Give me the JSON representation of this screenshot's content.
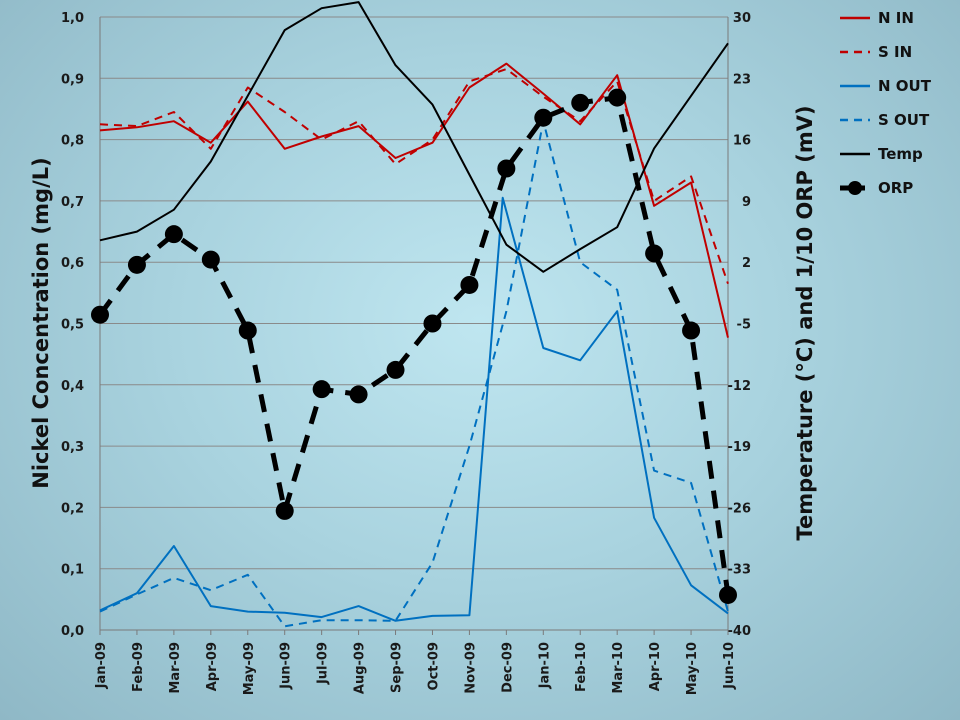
{
  "chart_data": {
    "type": "line",
    "categories": [
      "Jan-09",
      "Feb-09",
      "Mar-09",
      "Apr-09",
      "May-09",
      "Jun-09",
      "Jul-09",
      "Aug-09",
      "Sep-09",
      "Oct-09",
      "Nov-09",
      "Dec-09",
      "Jan-10",
      "Feb-10",
      "Mar-10",
      "Apr-10",
      "May-10",
      "Jun-10"
    ],
    "ylabel": "Nickel Concentration (mg/L)",
    "y2label": "Temperature (°C) and 1/10 ORP (mV)",
    "ylim": [
      0,
      1.0
    ],
    "y2lim": [
      -40,
      30
    ],
    "yticks": [
      "0,0",
      "0,1",
      "0,2",
      "0,3",
      "0,4",
      "0,5",
      "0,6",
      "0,7",
      "0,8",
      "0,9",
      "1,0"
    ],
    "y2ticks": [
      "-40",
      "-33",
      "-26",
      "-19",
      "-12",
      "-5",
      "2",
      "9",
      "16",
      "23",
      "30"
    ],
    "grid": true,
    "legend_position": "top-right",
    "series": [
      {
        "name": "N IN",
        "axis": "left",
        "color": "#c00000",
        "dash": "solid",
        "x": [
          0,
          1,
          2,
          3,
          4,
          5,
          6,
          7,
          8,
          9,
          10,
          11,
          12,
          13,
          14,
          15,
          16,
          17
        ],
        "y": [
          0.815,
          0.82,
          0.83,
          0.795,
          0.862,
          0.785,
          0.805,
          0.822,
          0.77,
          0.795,
          0.885,
          0.924,
          0.875,
          0.825,
          0.905,
          0.692,
          0.73,
          0.477
        ]
      },
      {
        "name": "S IN",
        "axis": "left",
        "color": "#c00000",
        "dash": "dashed",
        "x": [
          0,
          1,
          2,
          3,
          4,
          5,
          6,
          7,
          8,
          9,
          10,
          11,
          12,
          13,
          14,
          15,
          16,
          17
        ],
        "y": [
          0.825,
          0.822,
          0.845,
          0.785,
          0.885,
          0.845,
          0.8,
          0.83,
          0.76,
          0.8,
          0.895,
          0.915,
          0.87,
          0.83,
          0.895,
          0.7,
          0.74,
          0.565
        ]
      },
      {
        "name": "N OUT",
        "axis": "left",
        "color": "#0070c0",
        "dash": "solid",
        "x": [
          0,
          1,
          2,
          3,
          4,
          5,
          6,
          7,
          8,
          9,
          10,
          10.9,
          12,
          13,
          14,
          15,
          16,
          17
        ],
        "y": [
          0.032,
          0.06,
          0.137,
          0.039,
          0.03,
          0.028,
          0.021,
          0.039,
          0.015,
          0.023,
          0.024,
          0.705,
          0.46,
          0.44,
          0.52,
          0.183,
          0.073,
          0.027
        ]
      },
      {
        "name": "S OUT",
        "axis": "left",
        "color": "#0070c0",
        "dash": "dashed",
        "x": [
          0,
          1,
          2,
          3,
          4,
          5,
          6,
          7,
          8,
          9,
          10,
          11,
          12,
          13,
          14,
          15,
          16,
          17
        ],
        "y": [
          0.03,
          0.058,
          0.085,
          0.065,
          0.09,
          0.006,
          0.016,
          0.016,
          0.015,
          0.11,
          0.3,
          0.52,
          0.83,
          0.6,
          0.555,
          0.26,
          0.24,
          0.03
        ]
      },
      {
        "name": "Temp",
        "axis": "right",
        "color": "#000000",
        "dash": "solid",
        "x": [
          0,
          1,
          2,
          3,
          4,
          5,
          6,
          7,
          8,
          9,
          10,
          11,
          12,
          13,
          14,
          15,
          16,
          17
        ],
        "y": [
          4.5,
          5.5,
          8.0,
          13.5,
          21.0,
          28.5,
          31.0,
          31.7,
          24.5,
          20.0,
          12.0,
          4.0,
          0.9,
          3.5,
          6.0,
          15.0,
          21.0,
          27.0
        ]
      },
      {
        "name": "ORP",
        "axis": "right",
        "color": "#000000",
        "dash": "dashed",
        "markers": true,
        "x": [
          0,
          1,
          2,
          3,
          4,
          5,
          6,
          7,
          8,
          9,
          10,
          11,
          12,
          13,
          14,
          15,
          16,
          17
        ],
        "y": [
          -4.0,
          1.7,
          5.2,
          2.3,
          -5.8,
          -26.4,
          -12.5,
          -13.1,
          -10.3,
          -5.0,
          -0.6,
          12.7,
          18.5,
          20.2,
          20.8,
          3.0,
          -5.8,
          -36.0
        ]
      }
    ]
  }
}
